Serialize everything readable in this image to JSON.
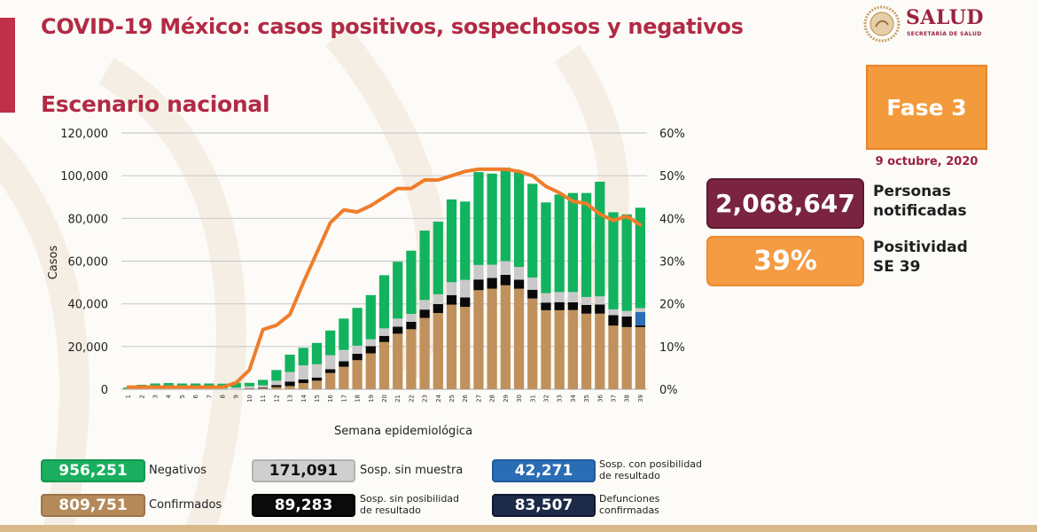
{
  "header": {
    "title": "COVID-19 México: casos positivos, sospechosos y negativos",
    "subtitle": "Escenario nacional",
    "logo_name": "SALUD",
    "logo_sub": "SECRETARÍA DE SALUD"
  },
  "status": {
    "phase": "Fase 3",
    "date": "9 octubre, 2020",
    "notified_value": "2,068,647",
    "notified_label_1": "Personas",
    "notified_label_2": "notificadas",
    "positivity_value": "39%",
    "positivity_label_1": "Positividad",
    "positivity_label_2": "SE 39"
  },
  "legend": [
    {
      "value": "956,251",
      "label": "Negativos",
      "label2": "",
      "color": "#1aae5f"
    },
    {
      "value": "809,751",
      "label": "Confirmados",
      "label2": "",
      "color": "#b58a5a"
    },
    {
      "value": "171,091",
      "label": "Sosp. sin muestra",
      "label2": "",
      "color": "#cfcfcf"
    },
    {
      "value": "89,283",
      "label": "Sosp. sin posibilidad",
      "label2": "de resultado",
      "color": "#0b0b0b"
    },
    {
      "value": "42,271",
      "label": "Sosp. con posibilidad",
      "label2": "de resultado",
      "color": "#2a6db5"
    },
    {
      "value": "83,507",
      "label": "Defunciones",
      "label2": "confirmadas",
      "color": "#1d2a48"
    }
  ],
  "colors": {
    "negativos": "#12b35e",
    "confirmados": "#c0915c",
    "sin_muestra": "#c9c9c9",
    "sin_posibilidad": "#0a0a0a",
    "con_posibilidad": "#2a6db5",
    "line": "#ef7d2b",
    "grid": "#c9ccd0",
    "title": "#b22a45"
  },
  "chart_data": {
    "type": "bar",
    "stacked": true,
    "title": "Escenario nacional",
    "xlabel": "Semana epidemiológica",
    "ylabel": "Casos",
    "ylim": [
      0,
      120000
    ],
    "y2lim": [
      0,
      60
    ],
    "yticks": [
      "0",
      "20,000",
      "40,000",
      "60,000",
      "80,000",
      "100,000",
      "120,000"
    ],
    "y2ticks": [
      "0%",
      "10%",
      "20%",
      "30%",
      "40%",
      "50%",
      "60%"
    ],
    "grid": true,
    "categories": [
      "1",
      "2",
      "3",
      "4",
      "5",
      "6",
      "7",
      "8",
      "9",
      "10",
      "11",
      "12",
      "13",
      "14",
      "15",
      "16",
      "17",
      "18",
      "19",
      "20",
      "21",
      "22",
      "23",
      "24",
      "25",
      "26",
      "27",
      "28",
      "29",
      "30",
      "31",
      "32",
      "33",
      "34",
      "35",
      "36",
      "37",
      "38",
      "39"
    ],
    "series": [
      {
        "name": "Confirmados",
        "values": [
          0,
          0,
          0,
          0,
          0,
          0,
          0,
          0,
          100,
          300,
          500,
          1000,
          1500,
          2900,
          4000,
          7600,
          10500,
          13600,
          16800,
          22100,
          26000,
          28100,
          33400,
          35700,
          39600,
          38600,
          46400,
          47100,
          48700,
          47100,
          42500,
          37000,
          37000,
          37100,
          35400,
          35400,
          29800,
          29100,
          29100
        ]
      },
      {
        "name": "Sosp. sin posibilidad de resultado",
        "values": [
          0,
          0,
          0,
          0,
          0,
          0,
          0,
          0,
          0,
          100,
          300,
          1000,
          2100,
          1700,
          1500,
          1800,
          2600,
          3000,
          3400,
          2900,
          3300,
          3500,
          3900,
          4200,
          4500,
          4400,
          5000,
          5000,
          4900,
          4200,
          4100,
          3600,
          3800,
          3600,
          4100,
          4300,
          4900,
          5000,
          900
        ]
      },
      {
        "name": "Sosp. con posibilidad de resultado",
        "values": [
          0,
          0,
          0,
          0,
          0,
          0,
          0,
          0,
          0,
          0,
          0,
          0,
          0,
          0,
          0,
          0,
          0,
          0,
          0,
          0,
          0,
          0,
          0,
          0,
          0,
          0,
          0,
          0,
          0,
          0,
          0,
          0,
          0,
          0,
          0,
          0,
          0,
          0,
          6200
        ]
      },
      {
        "name": "Sosp. sin muestra",
        "values": [
          200,
          300,
          300,
          300,
          300,
          300,
          300,
          300,
          700,
          1000,
          1000,
          2000,
          4500,
          6600,
          6200,
          6500,
          5300,
          3800,
          3200,
          3500,
          3800,
          3700,
          4500,
          4600,
          6000,
          8200,
          6800,
          6200,
          6400,
          6000,
          5700,
          4400,
          4700,
          4800,
          3700,
          3800,
          2700,
          2600,
          1800
        ]
      },
      {
        "name": "Negativos",
        "values": [
          600,
          1800,
          2400,
          2600,
          2400,
          2400,
          2400,
          2300,
          2200,
          1600,
          2600,
          5000,
          8100,
          8200,
          10000,
          11600,
          14700,
          17700,
          20700,
          24900,
          26600,
          29600,
          32500,
          34000,
          38800,
          36700,
          43500,
          42700,
          43800,
          44700,
          43900,
          42500,
          45700,
          46400,
          48700,
          53700,
          45500,
          45200,
          47000
        ]
      },
      {
        "name": "Positividad",
        "axis": "right",
        "unit": "%",
        "values": [
          0.5,
          0.5,
          0.5,
          0.5,
          0.5,
          0.5,
          0.5,
          0.5,
          1.5,
          4.5,
          14,
          15,
          17.5,
          25,
          32,
          39,
          42,
          41.5,
          43,
          45,
          47,
          47,
          49,
          49,
          50,
          51,
          51.5,
          51.5,
          51.5,
          51,
          50,
          47.5,
          46,
          44,
          43.5,
          41,
          39.5,
          40.5,
          38.5
        ]
      }
    ],
    "legend_placement": "bottom"
  }
}
